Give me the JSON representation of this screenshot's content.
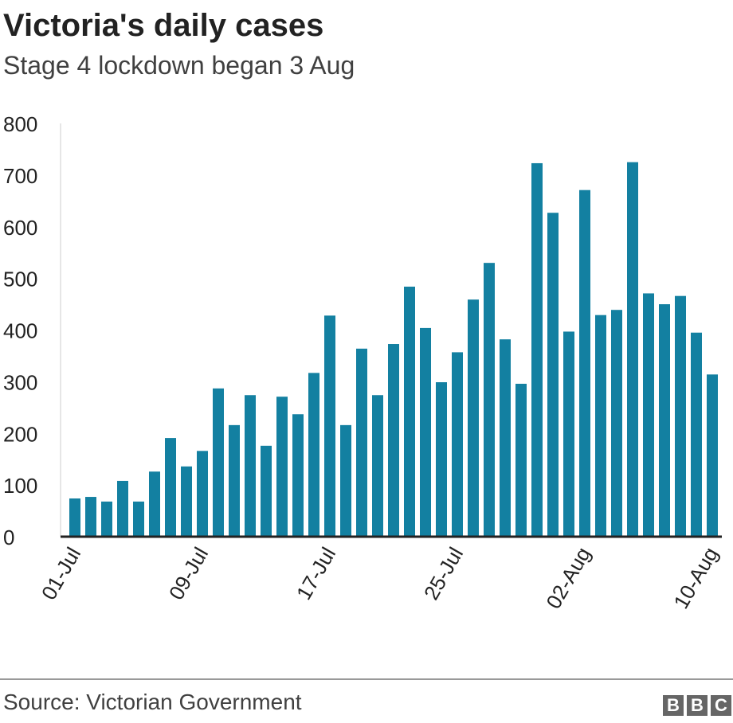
{
  "chart_data": {
    "type": "bar",
    "title": "Victoria's daily cases",
    "subtitle": "Stage 4 lockdown began 3 Aug",
    "xlabel": "",
    "ylabel": "",
    "ylim": [
      0,
      800
    ],
    "yticks": [
      0,
      100,
      200,
      300,
      400,
      500,
      600,
      700,
      800
    ],
    "xtick_labels": [
      "01-Jul",
      "09-Jul",
      "17-Jul",
      "25-Jul",
      "02-Aug",
      "10-Aug"
    ],
    "xtick_every": 8,
    "color": "#1380A1",
    "values": [
      74,
      77,
      68,
      108,
      68,
      126,
      191,
      136,
      166,
      287,
      216,
      274,
      176,
      271,
      237,
      317,
      428,
      216,
      364,
      274,
      373,
      484,
      404,
      299,
      357,
      459,
      530,
      382,
      296,
      723,
      627,
      397,
      671,
      429,
      439,
      725,
      471,
      450,
      466,
      395,
      314
    ],
    "source": "Source: Victorian Government"
  },
  "brand": {
    "logo": [
      "B",
      "B",
      "C"
    ]
  }
}
